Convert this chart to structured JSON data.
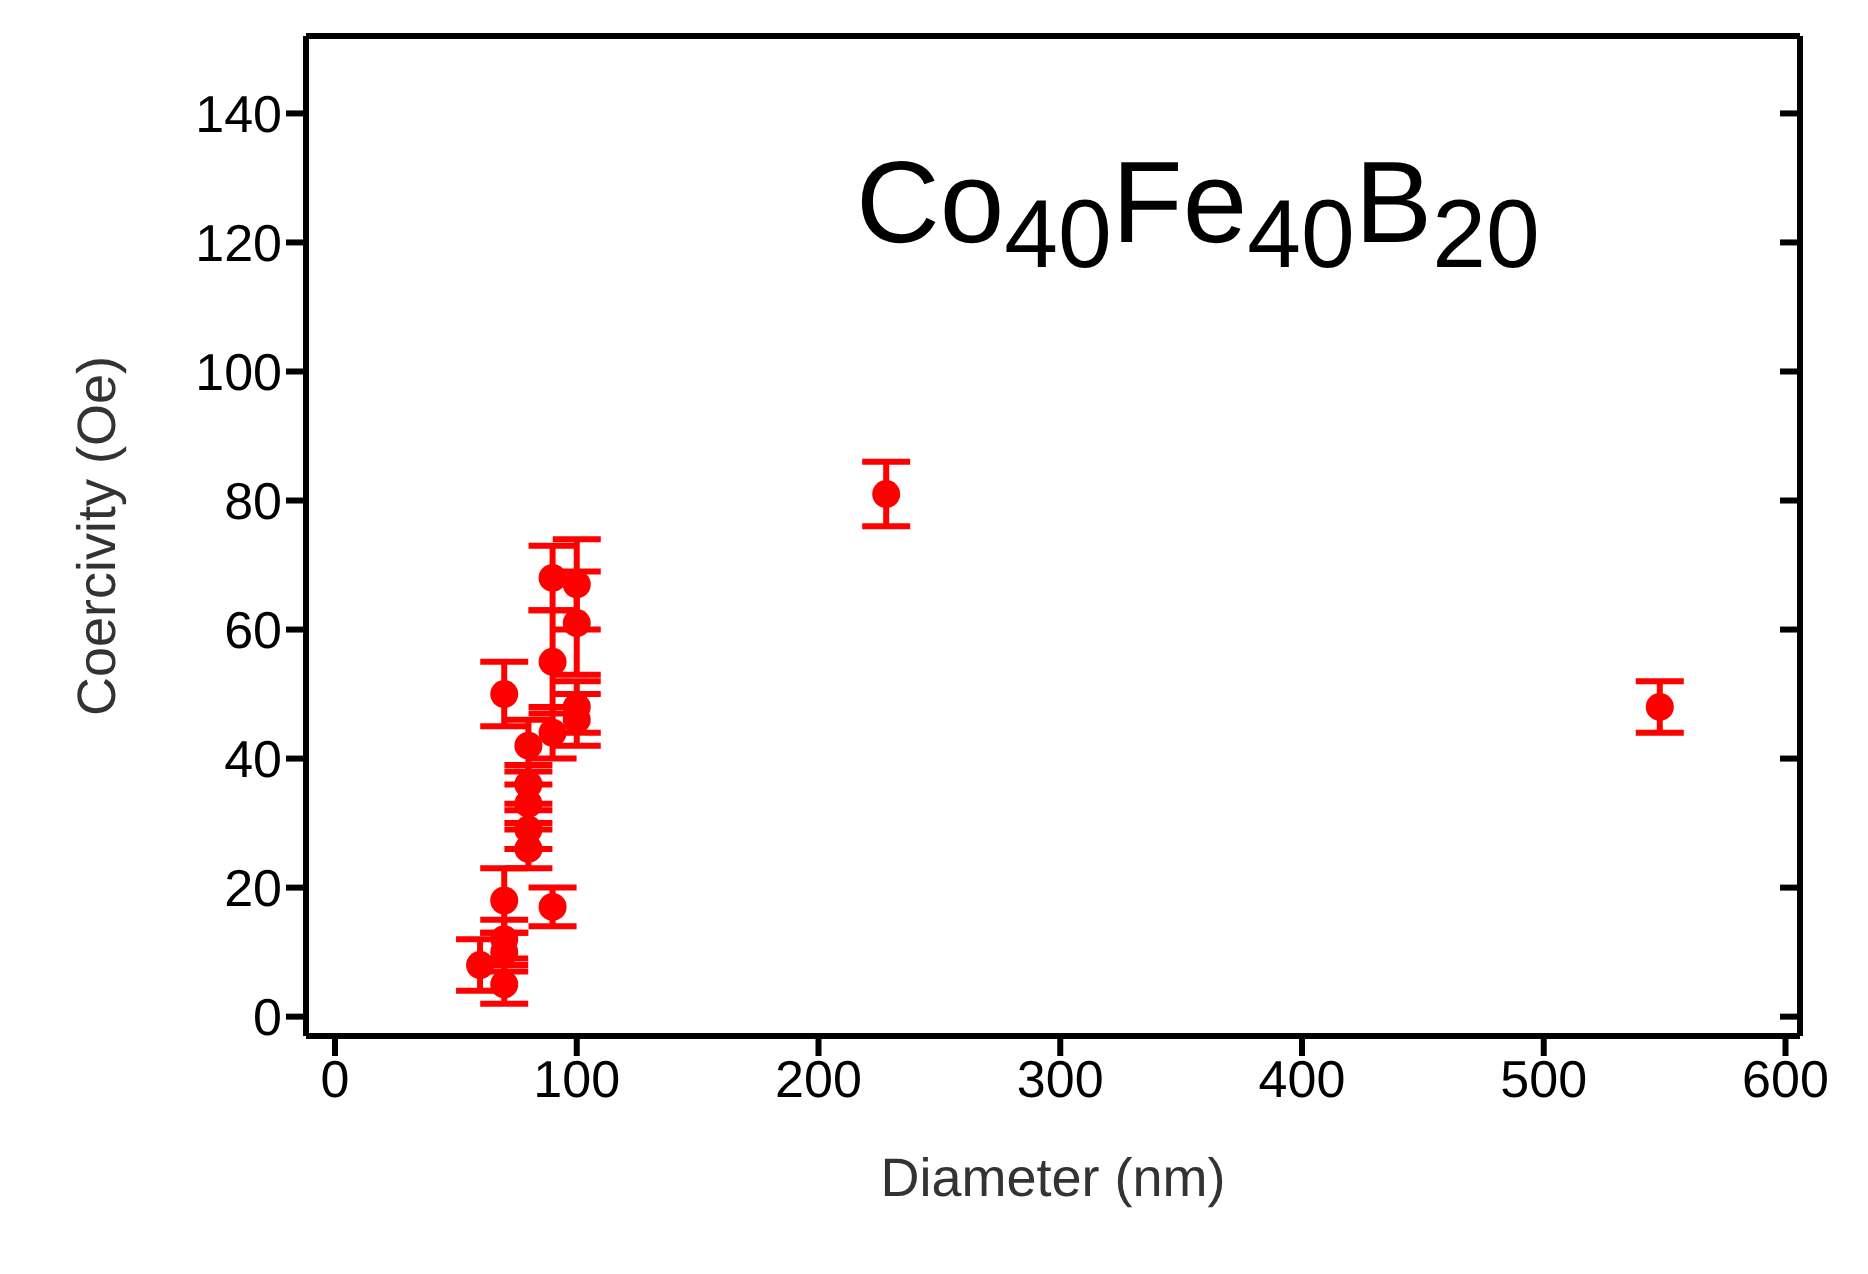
{
  "chart_data": {
    "type": "scatter",
    "xlabel": "Diameter (nm)",
    "ylabel": "Coercivity (Oe)",
    "annotations": [
      "Co$_{40}$Fe$_{40}$B$_{20}$"
    ],
    "x": [
      60,
      70,
      70,
      70,
      70,
      70,
      80,
      80,
      80,
      80,
      80,
      90,
      90,
      90,
      90,
      100,
      100,
      100,
      100,
      228,
      548
    ],
    "values": [
      8,
      5,
      10,
      12,
      18,
      50,
      26,
      29,
      33,
      36,
      42,
      17,
      44,
      55,
      68,
      46,
      48,
      61,
      67,
      81,
      48
    ],
    "errors": [
      4,
      3,
      3,
      3,
      5,
      5,
      3,
      3,
      3,
      3,
      4,
      3,
      4,
      8,
      5,
      4,
      4,
      8,
      7,
      5,
      4
    ],
    "color": "#ff0000",
    "marker": "circle",
    "xlim": [
      -12,
      606
    ],
    "xticks": [
      0,
      100,
      200,
      300,
      400,
      500,
      600
    ],
    "ylim": [
      -3,
      152
    ],
    "yticks": [
      0,
      20,
      40,
      60,
      80,
      100,
      120,
      140
    ],
    "grid": false,
    "legend": false
  }
}
